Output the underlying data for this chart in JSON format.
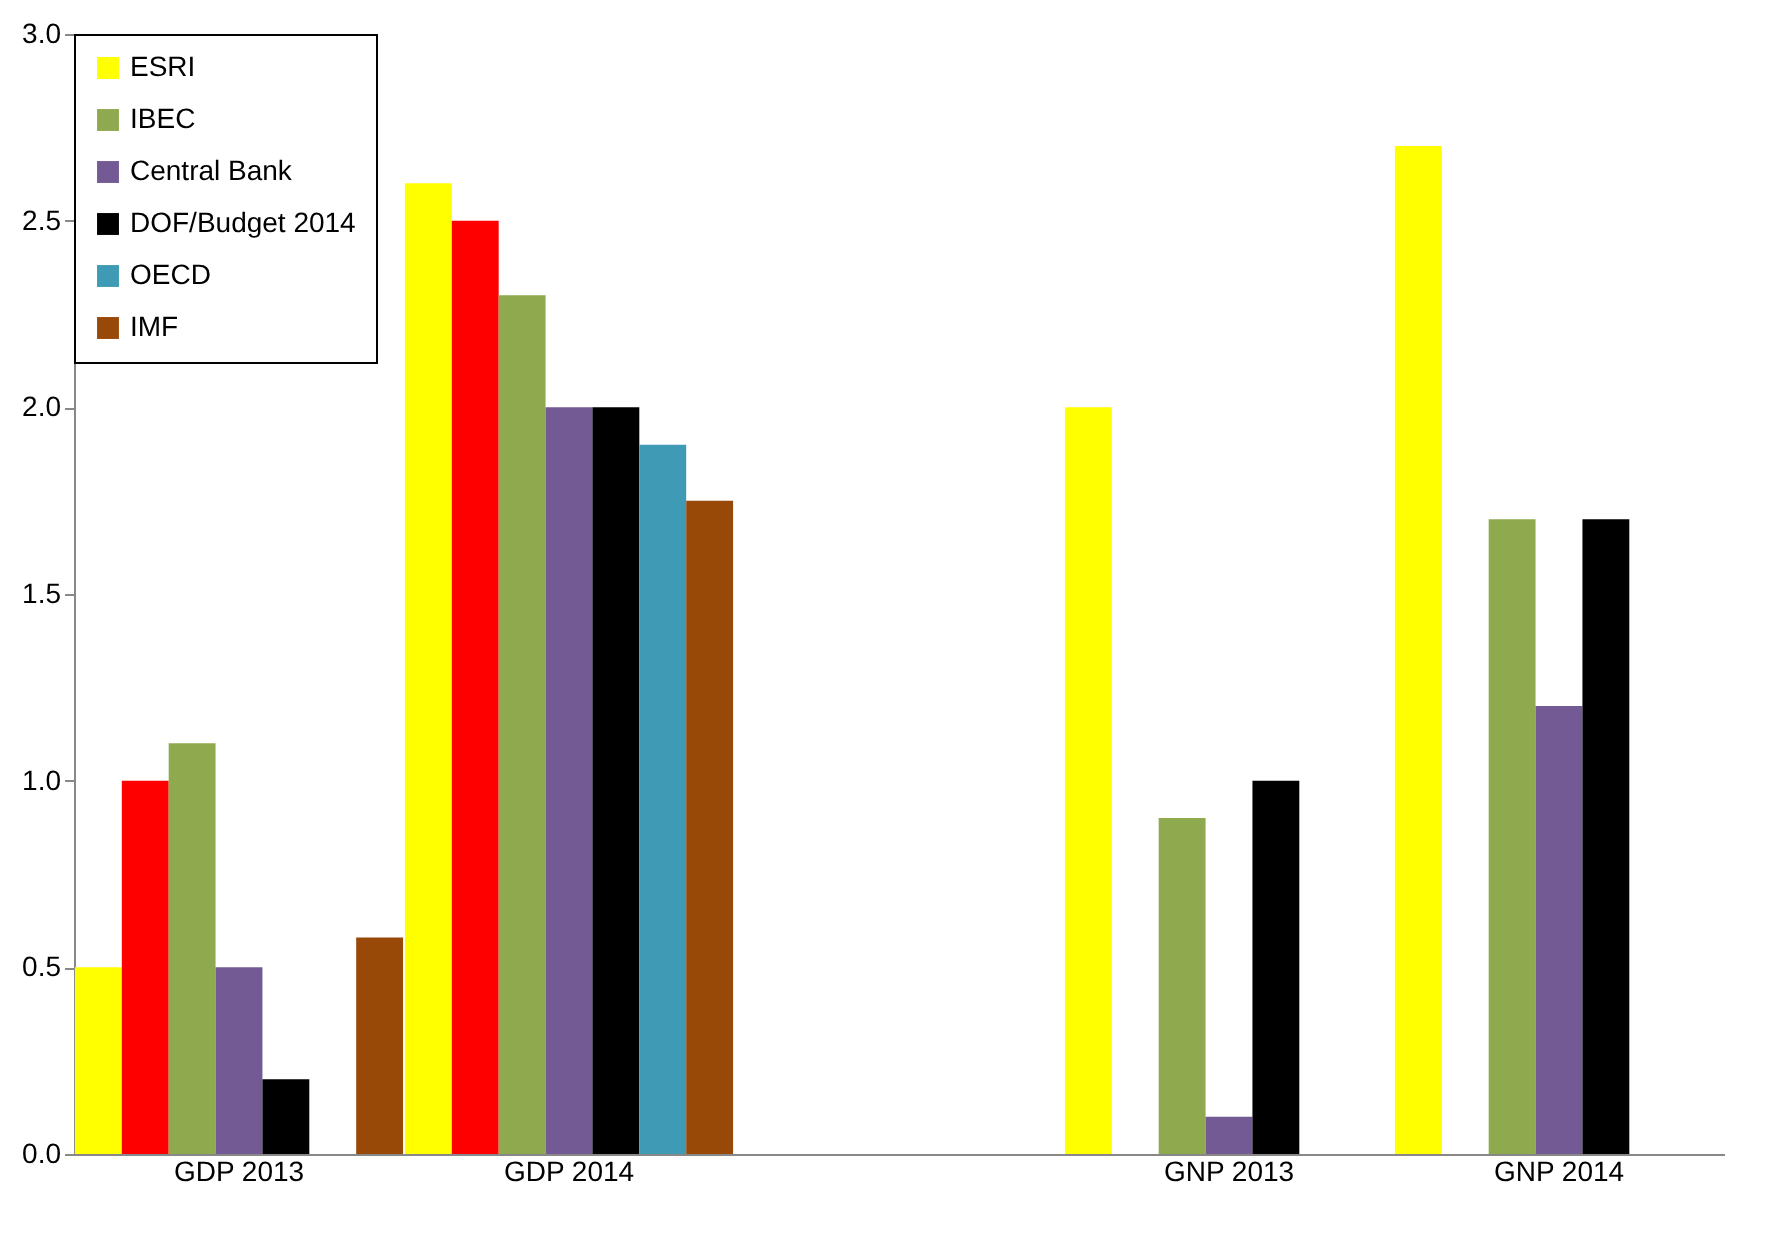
{
  "chart_data": {
    "type": "bar",
    "categories": [
      "GDP 2013",
      "GDP 2014",
      null,
      "GNP 2013",
      "GNP 2014"
    ],
    "series": [
      {
        "name": "ESRI",
        "color": "#ffff00",
        "values": [
          0.5,
          2.6,
          null,
          2.0,
          2.7
        ]
      },
      {
        "color": "#ff0000",
        "values": [
          1.0,
          2.5,
          null,
          null,
          null
        ]
      },
      {
        "name": "IBEC",
        "color": "#8faa4e",
        "values": [
          1.1,
          2.3,
          null,
          0.9,
          1.7
        ]
      },
      {
        "name": "Central Bank",
        "color": "#735a94",
        "values": [
          0.5,
          2.0,
          null,
          0.1,
          1.2
        ]
      },
      {
        "name": "DOF/Budget 2014",
        "color": "#000000",
        "values": [
          0.2,
          2.0,
          null,
          1.0,
          1.7
        ]
      },
      {
        "name": "OECD",
        "color": "#3f9bb5",
        "values": [
          null,
          1.9,
          null,
          null,
          null
        ]
      },
      {
        "name": "IMF",
        "color": "#984807",
        "values": [
          0.58,
          1.75,
          null,
          null,
          null
        ]
      }
    ],
    "ylim": [
      0,
      3
    ],
    "yticks": [
      {
        "value": 0,
        "label": "0.0"
      },
      {
        "value": 0.5,
        "label": "0.5"
      },
      {
        "value": 1,
        "label": "1.0"
      },
      {
        "value": 1.5,
        "label": "1.5"
      },
      {
        "value": 2,
        "label": "2.0"
      },
      {
        "value": 2.5,
        "label": "2.5"
      },
      {
        "value": 3,
        "label": "3.0"
      }
    ],
    "grid": false,
    "legend": "top left"
  }
}
